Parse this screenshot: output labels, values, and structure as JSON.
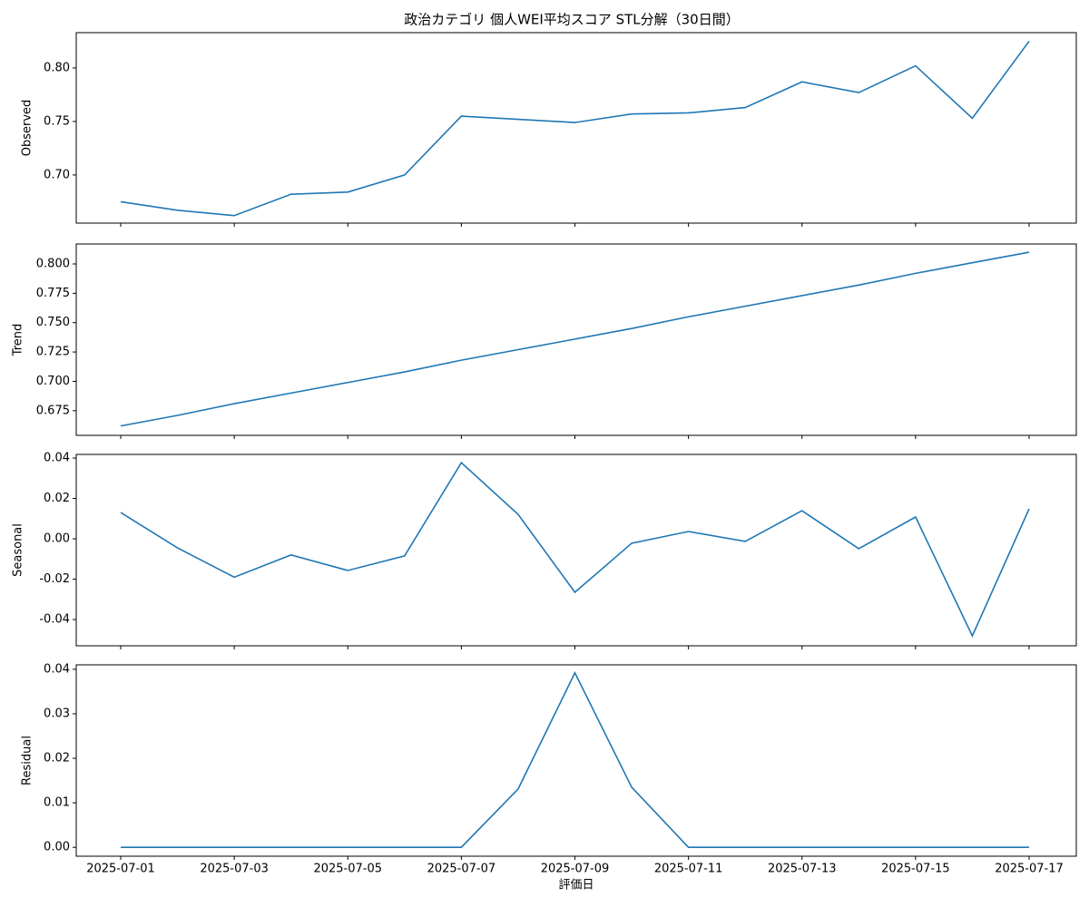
{
  "chart_data": [
    {
      "type": "line",
      "title": "政治カテゴリ 個人WEI平均スコア STL分解（30日間）",
      "ylabel": "Observed",
      "color": "#1f77b4",
      "values": [
        0.675,
        0.667,
        0.662,
        0.682,
        0.684,
        0.7,
        0.755,
        0.752,
        0.749,
        0.757,
        0.758,
        0.763,
        0.787,
        0.777,
        0.802,
        0.753,
        0.825
      ],
      "ylim": [
        0.655,
        0.833
      ],
      "yticks": [
        {
          "value": 0.7,
          "label": "0.70"
        },
        0.75,
        {
          "value": 0.8,
          "label": "0.80"
        }
      ]
    },
    {
      "type": "line",
      "ylabel": "Trend",
      "color": "#1f77b4",
      "values": [
        0.662,
        0.671,
        0.681,
        0.69,
        0.699,
        0.708,
        0.718,
        0.727,
        0.736,
        0.745,
        0.755,
        0.764,
        0.773,
        0.782,
        0.792,
        0.801,
        0.81
      ],
      "ylim": [
        0.654,
        0.817
      ],
      "yticks": [
        0.675,
        {
          "value": 0.7,
          "label": "0.700"
        },
        0.725,
        {
          "value": 0.75,
          "label": "0.750"
        },
        0.775,
        {
          "value": 0.8,
          "label": "0.800"
        }
      ]
    },
    {
      "type": "line",
      "ylabel": "Seasonal",
      "color": "#1f77b4",
      "values": [
        0.013,
        -0.0045,
        -0.019,
        -0.008,
        -0.0157,
        -0.0085,
        0.0377,
        0.0121,
        -0.0265,
        -0.0022,
        0.0036,
        -0.0013,
        0.0139,
        -0.0049,
        0.0108,
        -0.0481,
        0.0148
      ],
      "ylim": [
        -0.053,
        0.0418
      ],
      "yticks": [
        {
          "value": -0.04,
          "label": "-0.04"
        },
        {
          "value": -0.02,
          "label": "-0.02"
        },
        {
          "value": 0,
          "label": "0.00"
        },
        {
          "value": 0.02,
          "label": "0.02"
        },
        {
          "value": 0.04,
          "label": "0.04"
        }
      ]
    },
    {
      "type": "line",
      "ylabel": "Residual",
      "xlabel": "評価日",
      "color": "#1f77b4",
      "x": [
        "2025-07-01",
        "2025-07-02",
        "2025-07-03",
        "2025-07-04",
        "2025-07-05",
        "2025-07-06",
        "2025-07-07",
        "2025-07-08",
        "2025-07-09",
        "2025-07-10",
        "2025-07-11",
        "2025-07-12",
        "2025-07-13",
        "2025-07-14",
        "2025-07-15",
        "2025-07-16",
        "2025-07-17"
      ],
      "xticks": [
        "2025-07-01",
        "2025-07-03",
        "2025-07-05",
        "2025-07-07",
        "2025-07-09",
        "2025-07-11",
        "2025-07-13",
        "2025-07-15",
        "2025-07-17"
      ],
      "values": [
        0,
        0,
        0,
        0,
        0,
        0,
        0,
        0.0131,
        0.0392,
        0.0135,
        0,
        0,
        0,
        0,
        0,
        0,
        0
      ],
      "ylim": [
        -0.002,
        0.041
      ],
      "yticks": [
        {
          "value": 0,
          "label": "0.00"
        },
        {
          "value": 0.01,
          "label": "0.01"
        },
        {
          "value": 0.02,
          "label": "0.02"
        },
        {
          "value": 0.03,
          "label": "0.03"
        },
        {
          "value": 0.04,
          "label": "0.04"
        }
      ]
    }
  ]
}
